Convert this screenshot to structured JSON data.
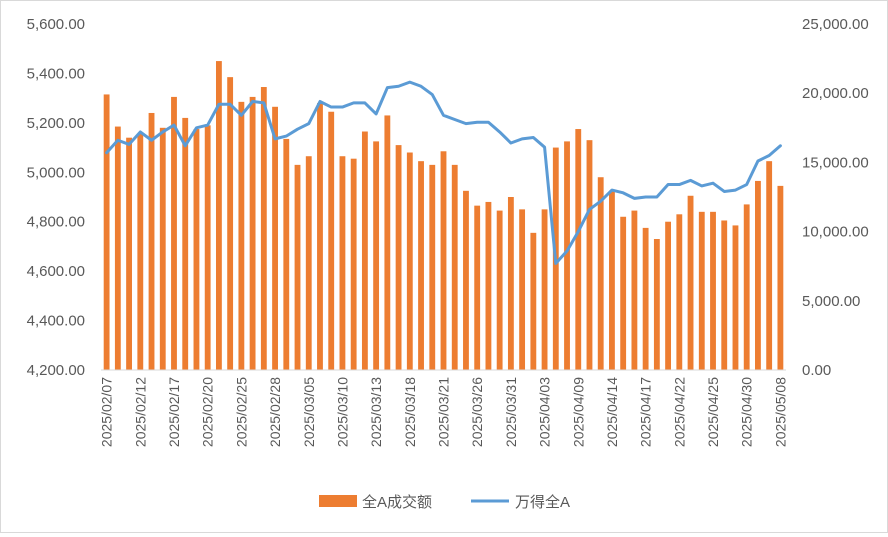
{
  "chart_data": {
    "type": "bar",
    "title": "",
    "x": [
      "2025/02/07",
      "2025/02/10",
      "2025/02/11",
      "2025/02/12",
      "2025/02/13",
      "2025/02/14",
      "2025/02/17",
      "2025/02/18",
      "2025/02/19",
      "2025/02/20",
      "2025/02/21",
      "2025/02/24",
      "2025/02/25",
      "2025/02/26",
      "2025/02/27",
      "2025/02/28",
      "2025/03/03",
      "2025/03/04",
      "2025/03/05",
      "2025/03/06",
      "2025/03/07",
      "2025/03/10",
      "2025/03/11",
      "2025/03/12",
      "2025/03/13",
      "2025/03/14",
      "2025/03/17",
      "2025/03/18",
      "2025/03/19",
      "2025/03/20",
      "2025/03/21",
      "2025/03/24",
      "2025/03/25",
      "2025/03/26",
      "2025/03/27",
      "2025/03/28",
      "2025/03/31",
      "2025/04/01",
      "2025/04/02",
      "2025/04/03",
      "2025/04/07",
      "2025/04/08",
      "2025/04/09",
      "2025/04/10",
      "2025/04/11",
      "2025/04/14",
      "2025/04/15",
      "2025/04/16",
      "2025/04/17",
      "2025/04/18",
      "2025/04/21",
      "2025/04/22",
      "2025/04/23",
      "2025/04/24",
      "2025/04/25",
      "2025/04/28",
      "2025/04/29",
      "2025/04/30",
      "2025/05/06",
      "2025/05/07",
      "2025/05/08"
    ],
    "x_tick_labels": [
      "2025/02/07",
      "2025/02/12",
      "2025/02/17",
      "2025/02/20",
      "2025/02/25",
      "2025/02/28",
      "2025/03/05",
      "2025/03/10",
      "2025/03/13",
      "2025/03/18",
      "2025/03/21",
      "2025/03/26",
      "2025/03/31",
      "2025/04/03",
      "2025/04/09",
      "2025/04/14",
      "2025/04/17",
      "2025/04/22",
      "2025/04/25",
      "2025/04/30",
      "2025/05/08"
    ],
    "y_left_ticks": [
      "4,200.00",
      "4,400.00",
      "4,600.00",
      "4,800.00",
      "5,000.00",
      "5,200.00",
      "5,400.00",
      "5,600.00"
    ],
    "y_right_ticks": [
      "0.00",
      "5,000.00",
      "10,000.00",
      "15,000.00",
      "20,000.00",
      "25,000.00"
    ],
    "ylim_left": [
      4200,
      5600
    ],
    "ylim_right": [
      0,
      25000
    ],
    "series": [
      {
        "name": "全A成交额",
        "type": "bar",
        "axis": "left",
        "color": "#ED7D31",
        "values": [
          5315,
          5185,
          5140,
          5155,
          5240,
          5180,
          5305,
          5220,
          5175,
          5190,
          5450,
          5385,
          5285,
          5305,
          5345,
          5265,
          5135,
          5030,
          5065,
          5280,
          5245,
          5065,
          5055,
          5165,
          5125,
          5230,
          5110,
          5080,
          5045,
          5030,
          5085,
          5030,
          4925,
          4865,
          4880,
          4845,
          4900,
          4850,
          4755,
          4850,
          5100,
          5125,
          5175,
          5130,
          4980,
          4925,
          4820,
          4845,
          4775,
          4730,
          4800,
          4830,
          4905,
          4840,
          4840,
          4805,
          4785,
          4870,
          4965,
          5045,
          4945
        ]
      },
      {
        "name": "万得全A",
        "type": "line",
        "axis": "right",
        "color": "#5B9BD5",
        "values": [
          15700,
          16600,
          16300,
          17200,
          16600,
          17200,
          17700,
          16200,
          17500,
          17700,
          19200,
          19200,
          18400,
          19400,
          19300,
          16700,
          16900,
          17400,
          17800,
          19400,
          19000,
          19000,
          19300,
          19300,
          18500,
          20400,
          20500,
          20800,
          20500,
          19900,
          18400,
          18100,
          17800,
          17900,
          17900,
          17200,
          16400,
          16700,
          16800,
          16100,
          7700,
          8600,
          10000,
          11600,
          12200,
          13000,
          12800,
          12400,
          12500,
          12500,
          13400,
          13400,
          13700,
          13300,
          13500,
          12900,
          13000,
          13400,
          15100,
          15500,
          16200
        ]
      }
    ],
    "legend_position": "bottom-center",
    "grid": false
  }
}
